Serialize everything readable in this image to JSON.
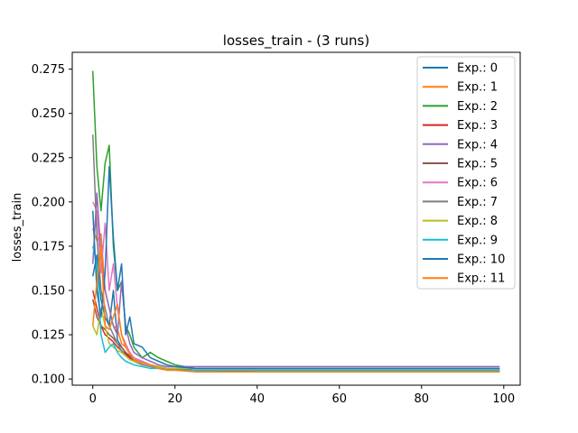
{
  "chart_data": {
    "type": "line",
    "title": "losses_train - (3 runs)",
    "xlabel": "",
    "ylabel": "losses_train",
    "xlim": [
      -5,
      104
    ],
    "ylim": [
      0.0965,
      0.2845
    ],
    "x_ticks": [
      0,
      20,
      40,
      60,
      80,
      100
    ],
    "x_tick_labels": [
      "0",
      "20",
      "40",
      "60",
      "80",
      "100"
    ],
    "y_ticks": [
      0.1,
      0.125,
      0.15,
      0.175,
      0.2,
      0.225,
      0.25,
      0.275
    ],
    "y_tick_labels": [
      "0.100",
      "0.125",
      "0.150",
      "0.175",
      "0.200",
      "0.225",
      "0.250",
      "0.275"
    ],
    "grid": false,
    "legend_position": "top-right",
    "x_points": [
      0,
      1,
      2,
      3,
      4,
      5,
      6,
      7,
      8,
      9,
      10,
      12,
      14,
      16,
      18,
      20,
      25,
      30,
      40,
      50,
      60,
      70,
      80,
      90,
      99
    ],
    "series": [
      {
        "name": "Exp.: 0",
        "color": "#1f77b4",
        "values": [
          0.158,
          0.17,
          0.145,
          0.135,
          0.13,
          0.15,
          0.122,
          0.118,
          0.115,
          0.112,
          0.111,
          0.109,
          0.108,
          0.107,
          0.106,
          0.106,
          0.105,
          0.105,
          0.105,
          0.105,
          0.105,
          0.105,
          0.105,
          0.105,
          0.105
        ]
      },
      {
        "name": "Exp.: 1",
        "color": "#ff7f0e",
        "values": [
          0.185,
          0.178,
          0.182,
          0.15,
          0.14,
          0.13,
          0.128,
          0.12,
          0.118,
          0.115,
          0.112,
          0.11,
          0.108,
          0.107,
          0.106,
          0.105,
          0.105,
          0.105,
          0.104,
          0.104,
          0.104,
          0.104,
          0.104,
          0.104,
          0.104
        ]
      },
      {
        "name": "Exp.: 2",
        "color": "#2ca02c",
        "values": [
          0.274,
          0.22,
          0.195,
          0.222,
          0.232,
          0.175,
          0.15,
          0.155,
          0.13,
          0.125,
          0.118,
          0.112,
          0.115,
          0.112,
          0.11,
          0.108,
          0.106,
          0.106,
          0.106,
          0.106,
          0.106,
          0.106,
          0.106,
          0.106,
          0.106
        ]
      },
      {
        "name": "Exp.: 3",
        "color": "#d62728",
        "values": [
          0.15,
          0.14,
          0.13,
          0.125,
          0.123,
          0.121,
          0.118,
          0.116,
          0.114,
          0.112,
          0.11,
          0.109,
          0.108,
          0.107,
          0.106,
          0.106,
          0.105,
          0.105,
          0.105,
          0.105,
          0.105,
          0.105,
          0.105,
          0.105,
          0.105
        ]
      },
      {
        "name": "Exp.: 4",
        "color": "#9467bd",
        "values": [
          0.165,
          0.205,
          0.17,
          0.15,
          0.14,
          0.13,
          0.125,
          0.155,
          0.13,
          0.12,
          0.115,
          0.112,
          0.11,
          0.108,
          0.107,
          0.107,
          0.107,
          0.107,
          0.107,
          0.107,
          0.107,
          0.107,
          0.107,
          0.107,
          0.107
        ]
      },
      {
        "name": "Exp.: 5",
        "color": "#8c564b",
        "values": [
          0.145,
          0.135,
          0.13,
          0.128,
          0.125,
          0.123,
          0.12,
          0.118,
          0.115,
          0.113,
          0.111,
          0.109,
          0.108,
          0.107,
          0.106,
          0.106,
          0.105,
          0.105,
          0.105,
          0.105,
          0.105,
          0.105,
          0.105,
          0.105,
          0.105
        ]
      },
      {
        "name": "Exp.: 6",
        "color": "#e377c2",
        "values": [
          0.2,
          0.195,
          0.16,
          0.188,
          0.15,
          0.165,
          0.14,
          0.125,
          0.12,
          0.115,
          0.112,
          0.11,
          0.108,
          0.107,
          0.106,
          0.106,
          0.106,
          0.106,
          0.106,
          0.106,
          0.106,
          0.106,
          0.106,
          0.106,
          0.106
        ]
      },
      {
        "name": "Exp.: 7",
        "color": "#7f7f7f",
        "values": [
          0.238,
          0.18,
          0.15,
          0.14,
          0.13,
          0.125,
          0.12,
          0.116,
          0.113,
          0.111,
          0.11,
          0.108,
          0.107,
          0.106,
          0.106,
          0.105,
          0.105,
          0.105,
          0.105,
          0.105,
          0.105,
          0.105,
          0.105,
          0.105,
          0.105
        ]
      },
      {
        "name": "Exp.: 8",
        "color": "#bcbd22",
        "values": [
          0.13,
          0.125,
          0.14,
          0.13,
          0.12,
          0.118,
          0.116,
          0.115,
          0.113,
          0.111,
          0.11,
          0.109,
          0.108,
          0.107,
          0.106,
          0.106,
          0.106,
          0.106,
          0.106,
          0.106,
          0.106,
          0.106,
          0.106,
          0.106,
          0.106
        ]
      },
      {
        "name": "Exp.: 9",
        "color": "#17becf",
        "values": [
          0.175,
          0.165,
          0.125,
          0.115,
          0.118,
          0.12,
          0.115,
          0.112,
          0.11,
          0.109,
          0.108,
          0.107,
          0.106,
          0.106,
          0.105,
          0.105,
          0.105,
          0.105,
          0.105,
          0.105,
          0.105,
          0.105,
          0.105,
          0.105,
          0.105
        ]
      },
      {
        "name": "Exp.: 10",
        "color": "#1f77b4",
        "values": [
          0.195,
          0.15,
          0.135,
          0.16,
          0.22,
          0.18,
          0.15,
          0.165,
          0.125,
          0.135,
          0.12,
          0.118,
          0.112,
          0.11,
          0.108,
          0.107,
          0.106,
          0.106,
          0.106,
          0.106,
          0.106,
          0.106,
          0.106,
          0.106,
          0.106
        ]
      },
      {
        "name": "Exp.: 11",
        "color": "#ff7f0e",
        "values": [
          0.13,
          0.155,
          0.175,
          0.13,
          0.128,
          0.135,
          0.142,
          0.125,
          0.118,
          0.114,
          0.111,
          0.109,
          0.108,
          0.106,
          0.105,
          0.105,
          0.104,
          0.104,
          0.104,
          0.104,
          0.104,
          0.104,
          0.104,
          0.104,
          0.104
        ]
      }
    ]
  }
}
